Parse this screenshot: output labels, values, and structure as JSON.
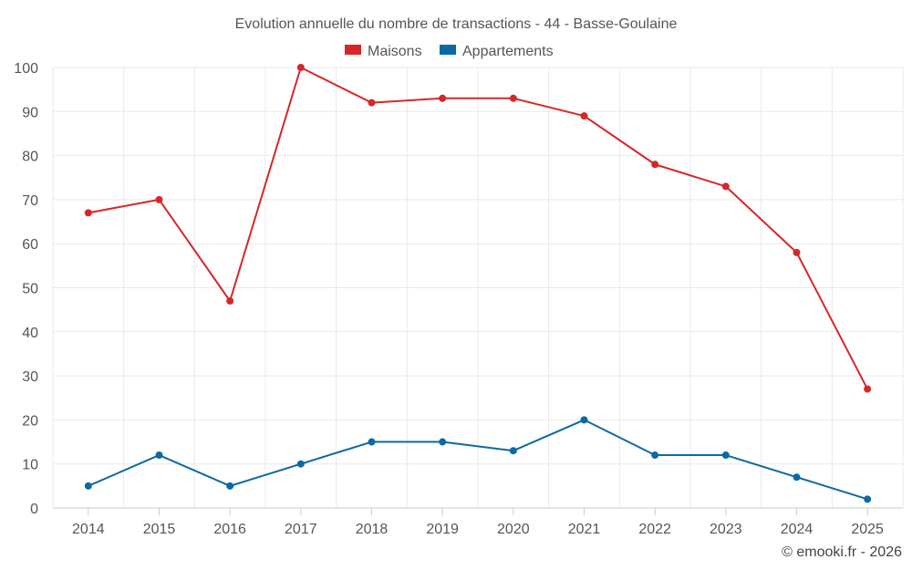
{
  "chart_data": {
    "type": "line",
    "title": "Evolution annuelle du nombre de transactions - 44 - Basse-Goulaine",
    "categories": [
      "2014",
      "2015",
      "2016",
      "2017",
      "2018",
      "2019",
      "2020",
      "2021",
      "2022",
      "2023",
      "2024",
      "2025"
    ],
    "series": [
      {
        "name": "Maisons",
        "color": "#d62728",
        "values": [
          67,
          70,
          47,
          100,
          92,
          93,
          93,
          89,
          78,
          73,
          58,
          27
        ]
      },
      {
        "name": "Appartements",
        "color": "#0b6aa2",
        "values": [
          5,
          12,
          5,
          10,
          15,
          15,
          13,
          20,
          12,
          12,
          7,
          2
        ]
      }
    ],
    "ylim": [
      0,
      100
    ],
    "yticks": [
      0,
      10,
      20,
      30,
      40,
      50,
      60,
      70,
      80,
      90,
      100
    ],
    "xlabel": "",
    "ylabel": "",
    "grid": true,
    "legend": "top-center"
  },
  "credit": "© emooki.fr - 2026"
}
